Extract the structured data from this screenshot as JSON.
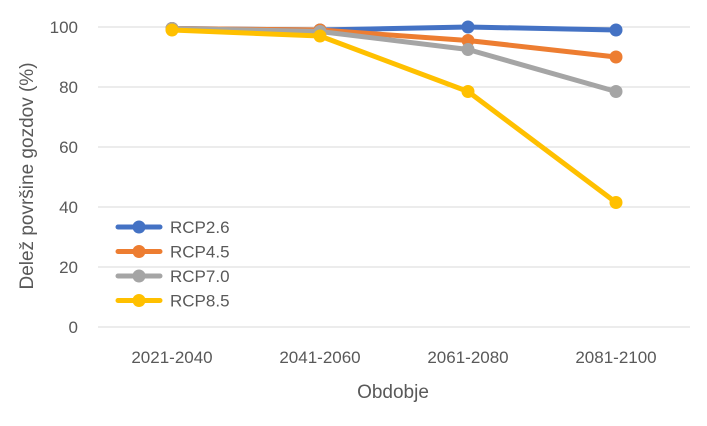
{
  "chart_data": {
    "type": "line",
    "title": "",
    "xlabel": "Obdobje",
    "ylabel": "Delež površine gozdov (%)",
    "categories": [
      "2021-2040",
      "2041-2060",
      "2061-2080",
      "2081-2100"
    ],
    "ylim": [
      0,
      100
    ],
    "yticks": [
      "0",
      "20",
      "40",
      "60",
      "80",
      "100"
    ],
    "grid": true,
    "legend_position": "bottom-left",
    "series": [
      {
        "name": "RCP2.6",
        "color": "#4472C4",
        "values": [
          99.5,
          99,
          100,
          99
        ]
      },
      {
        "name": "RCP4.5",
        "color": "#ED7D31",
        "values": [
          99.5,
          99,
          95.5,
          90
        ]
      },
      {
        "name": "RCP7.0",
        "color": "#A5A5A5",
        "values": [
          99.5,
          98.5,
          92.5,
          78.5
        ]
      },
      {
        "name": "RCP8.5",
        "color": "#FFC000",
        "values": [
          99,
          97,
          78.5,
          41.5
        ]
      }
    ]
  }
}
